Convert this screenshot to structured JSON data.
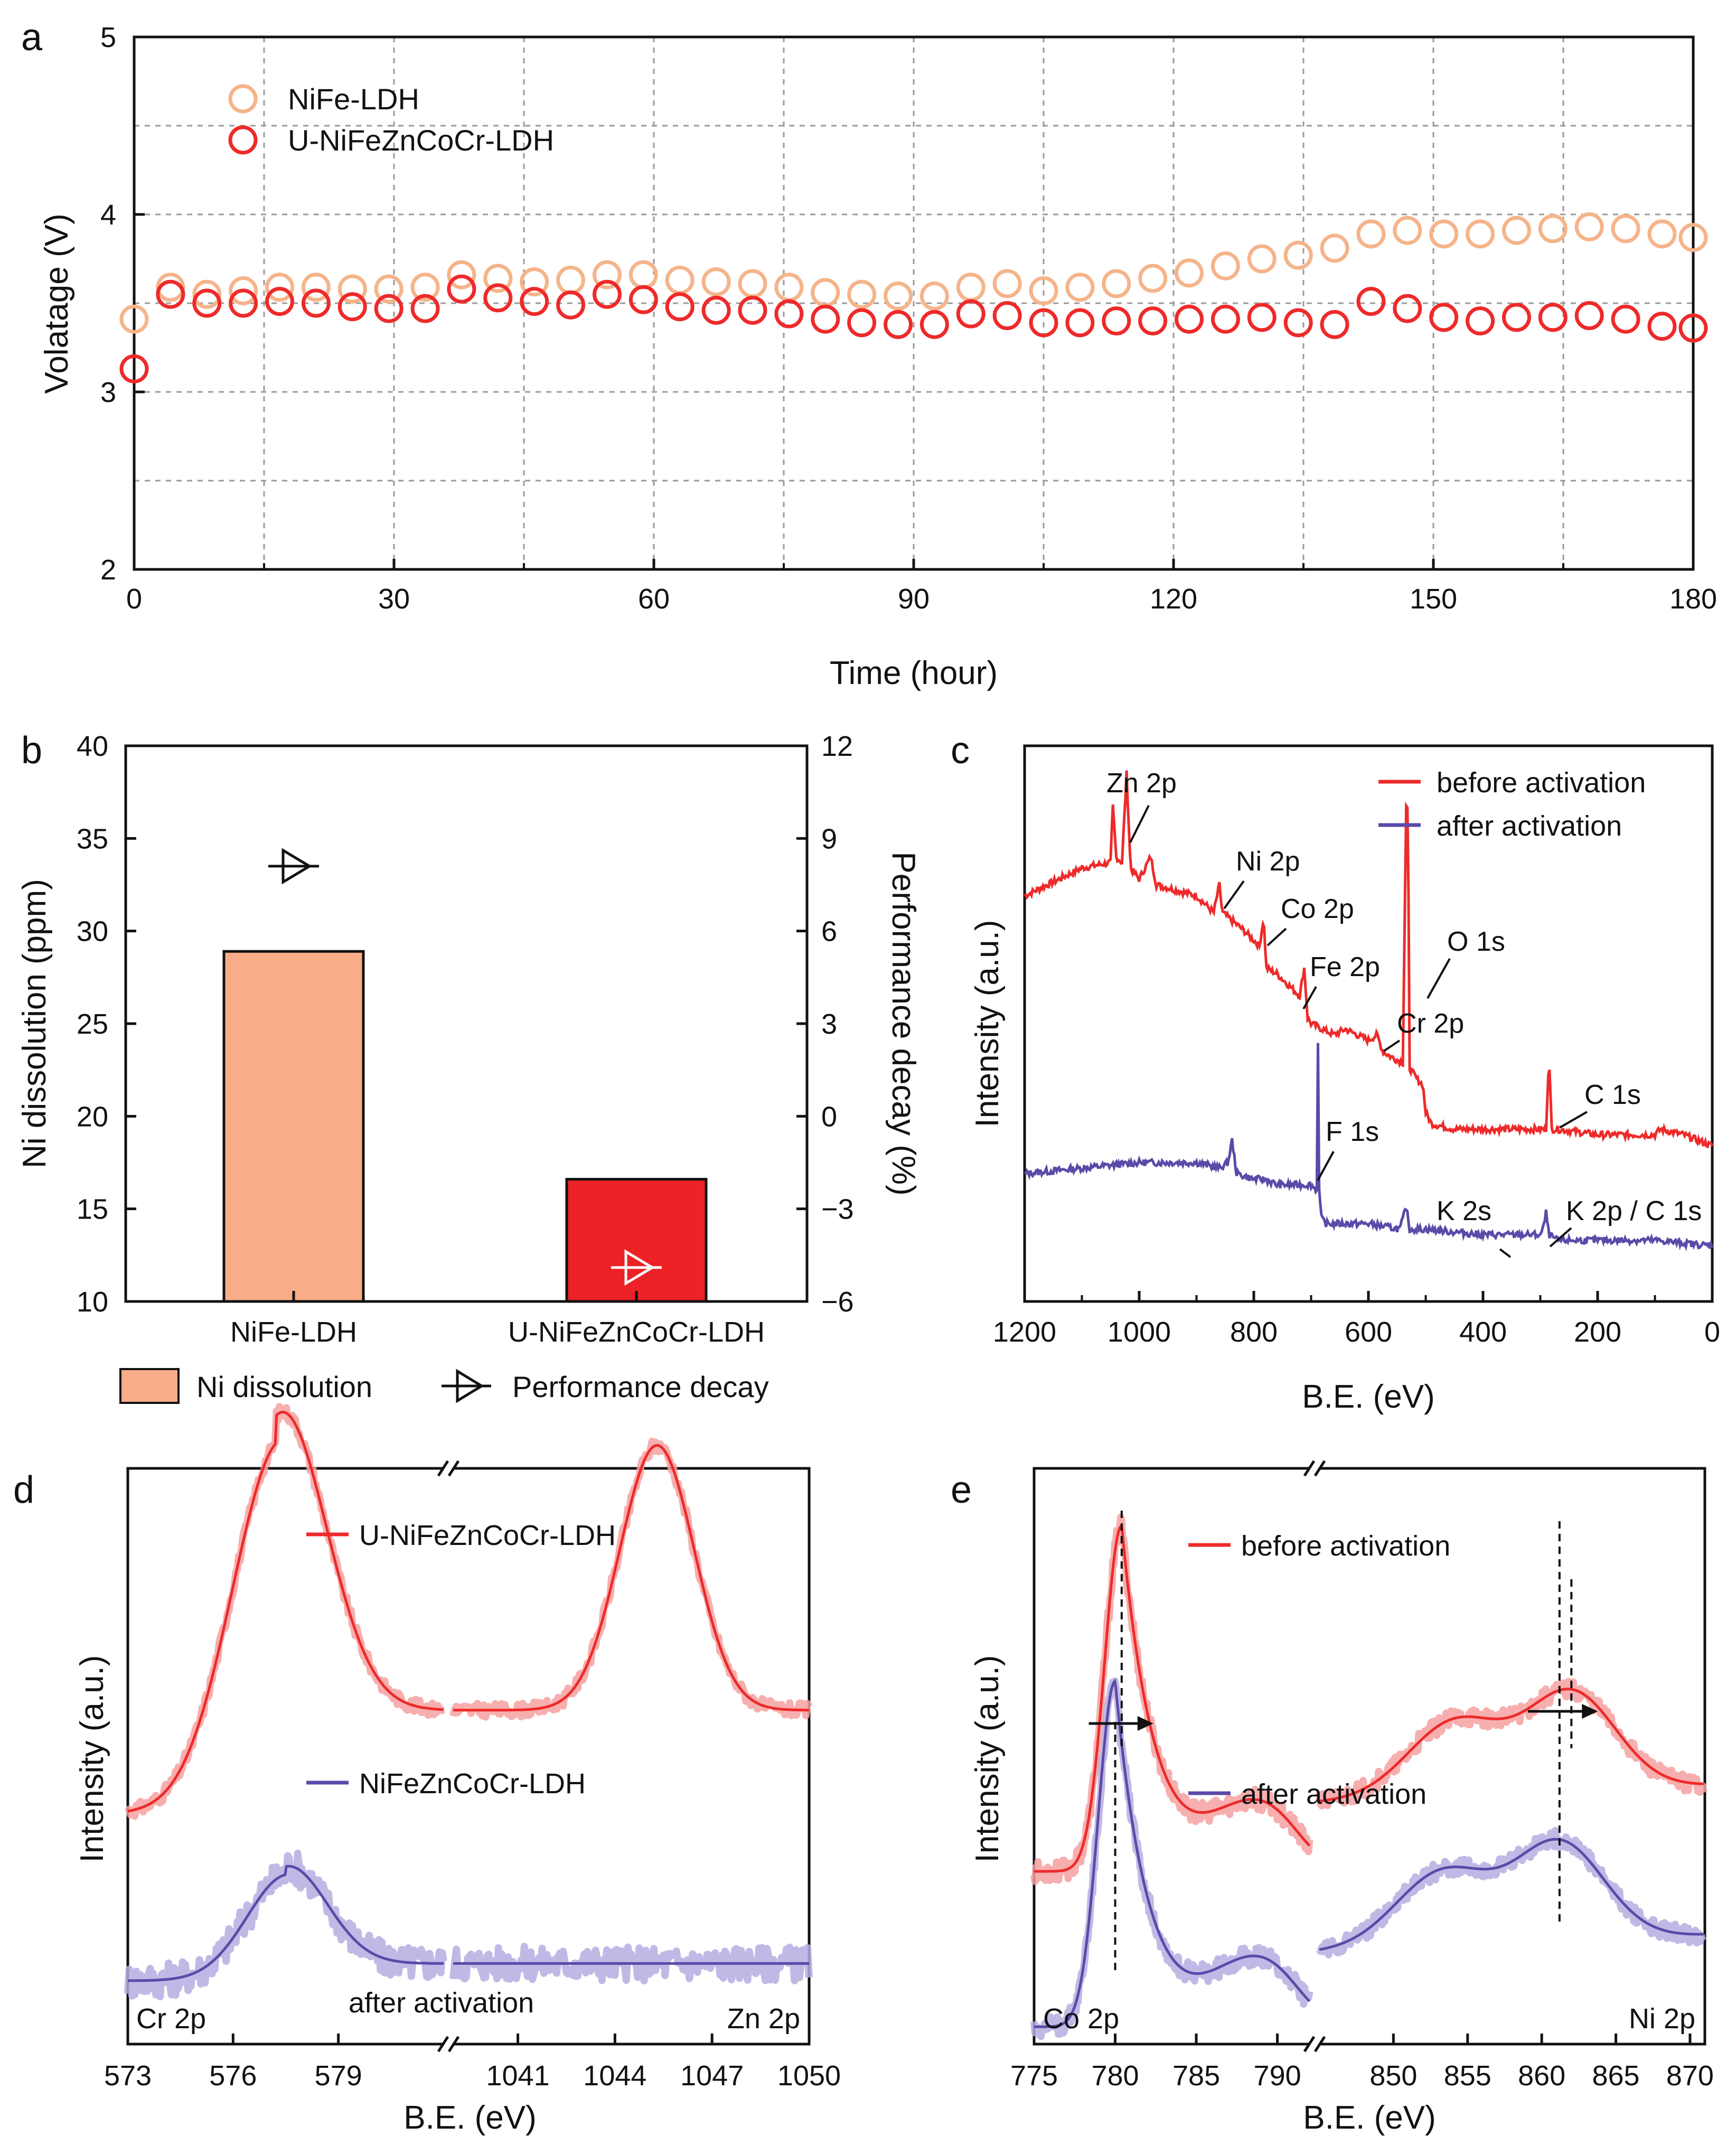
{
  "colors": {
    "nife": "#f5b48a",
    "u_ldh": "#ee2a2a",
    "after": "#5b4aa8",
    "bar_nife": "#f8ad88",
    "bar_u": "#ec2226",
    "axis": "#111111",
    "grid": "#9a9a9a"
  },
  "chart_data": [
    {
      "panel": "a",
      "type": "scatter",
      "xlabel": "Time (hour)",
      "ylabel": "Volatage (V)",
      "xlim": [
        0,
        180
      ],
      "ylim": [
        2,
        5
      ],
      "xticks": [
        "0",
        "30",
        "60",
        "90",
        "120",
        "150",
        "180"
      ],
      "yticks": [
        "2",
        "3",
        "4",
        "5"
      ],
      "grid": true,
      "legend_position": "top-left",
      "series": [
        {
          "name": "NiFe-LDH",
          "x": [
            0,
            4.2,
            8.4,
            12.6,
            16.8,
            21,
            25.2,
            29.4,
            33.6,
            37.8,
            42,
            46.2,
            50.4,
            54.6,
            58.8,
            63,
            67.2,
            71.4,
            75.6,
            79.8,
            84,
            88.2,
            92.4,
            96.6,
            100.8,
            105,
            109.2,
            113.4,
            117.6,
            121.8,
            126,
            130.2,
            134.4,
            138.6,
            142.8,
            147,
            151.2,
            155.4,
            159.6,
            163.8,
            168,
            172.2,
            176.4,
            180
          ],
          "y": [
            3.41,
            3.59,
            3.55,
            3.57,
            3.59,
            3.59,
            3.58,
            3.58,
            3.59,
            3.66,
            3.64,
            3.62,
            3.63,
            3.66,
            3.66,
            3.63,
            3.62,
            3.61,
            3.59,
            3.56,
            3.55,
            3.54,
            3.54,
            3.59,
            3.61,
            3.57,
            3.59,
            3.61,
            3.64,
            3.67,
            3.71,
            3.75,
            3.77,
            3.81,
            3.89,
            3.91,
            3.89,
            3.89,
            3.91,
            3.92,
            3.93,
            3.92,
            3.89,
            3.87
          ]
        },
        {
          "name": "U-NiFeZnCoCr-LDH",
          "x": [
            0,
            4.2,
            8.4,
            12.6,
            16.8,
            21,
            25.2,
            29.4,
            33.6,
            37.8,
            42,
            46.2,
            50.4,
            54.6,
            58.8,
            63,
            67.2,
            71.4,
            75.6,
            79.8,
            84,
            88.2,
            92.4,
            96.6,
            100.8,
            105,
            109.2,
            113.4,
            117.6,
            121.8,
            126,
            130.2,
            134.4,
            138.6,
            142.8,
            147,
            151.2,
            155.4,
            159.6,
            163.8,
            168,
            172.2,
            176.4,
            180
          ],
          "y": [
            3.13,
            3.55,
            3.5,
            3.5,
            3.51,
            3.5,
            3.48,
            3.47,
            3.47,
            3.58,
            3.53,
            3.51,
            3.49,
            3.55,
            3.52,
            3.48,
            3.46,
            3.46,
            3.44,
            3.41,
            3.39,
            3.38,
            3.38,
            3.44,
            3.43,
            3.39,
            3.39,
            3.4,
            3.4,
            3.41,
            3.41,
            3.42,
            3.39,
            3.38,
            3.51,
            3.47,
            3.42,
            3.4,
            3.42,
            3.42,
            3.43,
            3.41,
            3.37,
            3.36
          ]
        }
      ]
    },
    {
      "panel": "b",
      "type": "bar",
      "categories": [
        "NiFe-LDH",
        "U-NiFeZnCoCr-LDH"
      ],
      "ylabel": "Ni dissolution (ppm)",
      "y2label": "Performance decay (%)",
      "ylim": [
        10,
        40
      ],
      "y2lim": [
        -6,
        12
      ],
      "yticks": [
        "10",
        "15",
        "20",
        "25",
        "30",
        "35",
        "40"
      ],
      "y2ticks": [
        "-6",
        "-3",
        "0",
        "3",
        "6",
        "9",
        "12"
      ],
      "series": [
        {
          "name": "Ni dissolution",
          "values": [
            28.9,
            16.6
          ]
        },
        {
          "name": "Performance decay",
          "axis": "right",
          "values": [
            8.1,
            -4.9
          ]
        }
      ],
      "legend_position": "bottom"
    },
    {
      "panel": "c",
      "type": "line",
      "xlabel": "B.E. (eV)",
      "ylabel": "Intensity (a.u.)",
      "xlim": [
        1200,
        0
      ],
      "xticks": [
        "1200",
        "1000",
        "800",
        "600",
        "400",
        "200",
        "0"
      ],
      "legend_position": "top-right",
      "series": [
        {
          "name": "before activation",
          "x": [
            1200,
            1100,
            1050,
            1046,
            1040,
            1030,
            1022,
            1015,
            1000,
            980,
            970,
            900,
            870,
            860,
            855,
            820,
            790,
            783,
            778,
            760,
            720,
            712,
            706,
            700,
            660,
            640,
            600,
            585,
            575,
            560,
            540,
            534,
            531,
            528,
            515,
            505,
            500,
            490,
            450,
            400,
            300,
            290,
            285,
            280,
            270,
            200,
            100,
            90,
            50,
            0
          ],
          "y": [
            0.73,
            0.78,
            0.79,
            0.89,
            0.8,
            0.79,
            0.95,
            0.78,
            0.76,
            0.8,
            0.75,
            0.73,
            0.7,
            0.75,
            0.7,
            0.67,
            0.64,
            0.69,
            0.6,
            0.59,
            0.55,
            0.6,
            0.51,
            0.5,
            0.48,
            0.49,
            0.47,
            0.48,
            0.45,
            0.44,
            0.43,
            0.89,
            0.88,
            0.42,
            0.4,
            0.39,
            0.34,
            0.32,
            0.31,
            0.31,
            0.31,
            0.31,
            0.44,
            0.31,
            0.31,
            0.3,
            0.3,
            0.31,
            0.3,
            0.28
          ]
        },
        {
          "name": "after activation",
          "x": [
            1200,
            1100,
            1000,
            900,
            860,
            845,
            838,
            830,
            800,
            780,
            760,
            720,
            700,
            690,
            688,
            686,
            682,
            675,
            600,
            545,
            534,
            528,
            500,
            400,
            300,
            295,
            290,
            285,
            270,
            200,
            100,
            0
          ],
          "y": [
            0.23,
            0.24,
            0.25,
            0.25,
            0.24,
            0.25,
            0.29,
            0.23,
            0.22,
            0.22,
            0.21,
            0.21,
            0.21,
            0.2,
            0.47,
            0.2,
            0.15,
            0.14,
            0.14,
            0.13,
            0.17,
            0.13,
            0.13,
            0.12,
            0.12,
            0.13,
            0.16,
            0.12,
            0.11,
            0.11,
            0.11,
            0.1
          ]
        }
      ],
      "annotations": [
        "Zn 2p",
        "Ni 2p",
        "Co 2p",
        "Fe 2p",
        "O 1s",
        "Cr 2p",
        "C 1s",
        "F 1s",
        "K 2s",
        "K 2p / C 1s"
      ]
    },
    {
      "panel": "d",
      "type": "line",
      "xlabel": "B.E. (eV)",
      "ylabel": "Intensity (a.u.)",
      "xlim_left": [
        573,
        582
      ],
      "xlim_right": [
        1039,
        1050
      ],
      "xticks_left": [
        "573",
        "576",
        "579"
      ],
      "xticks_right": [
        "1041",
        "1044",
        "1047",
        "1050"
      ],
      "corner_labels": {
        "left": "Cr 2p",
        "middle": "after activation",
        "right": "Zn 2p"
      },
      "series": [
        {
          "name": "U-NiFeZnCoCr-LDH",
          "left_center": 577.2,
          "left_sigma": 1.35,
          "left_height": 0.6,
          "left_baseline": [
            0.4,
            0.58
          ],
          "right_center": 1045.3,
          "right_sigma": 1.15,
          "right_height": 0.46,
          "right_baseline": 0.58
        },
        {
          "name": "NiFeZnCoCr-LDH",
          "left_center": 577.5,
          "left_sigma": 1.15,
          "left_height": 0.18,
          "left_baseline": [
            0.11,
            0.14
          ],
          "right_center": 1045.3,
          "right_sigma": 1.2,
          "right_height": 0.0,
          "right_baseline": 0.14
        }
      ]
    },
    {
      "panel": "e",
      "type": "line",
      "xlabel": "B.E. (eV)",
      "ylabel": "Intensity (a.u.)",
      "xlim_left": [
        775,
        792
      ],
      "xlim_right": [
        845,
        871
      ],
      "xticks_left": [
        "775",
        "780",
        "785",
        "790"
      ],
      "xticks_right": [
        "850",
        "855",
        "860",
        "865",
        "870"
      ],
      "corner_labels": {
        "left": "Co 2p",
        "right": "Ni 2p"
      },
      "peak_markers": {
        "co_before": 780.4,
        "co_after": 780.0,
        "ni_before": 862.0,
        "ni_after": 861.2
      },
      "series": [
        {
          "name": "before activation",
          "co_peak": 780.4,
          "ni_peak": 862.0
        },
        {
          "name": "after activation",
          "co_peak": 780.0,
          "ni_peak": 861.2
        }
      ]
    }
  ],
  "panels": {
    "a": {
      "letter": "a",
      "xlabel": "Time (hour)",
      "ylabel": "Volatage (V)",
      "legend": [
        "NiFe-LDH",
        "U-NiFeZnCoCr-LDH"
      ]
    },
    "b": {
      "letter": "b",
      "ylabel": "Ni dissolution (ppm)",
      "y2label": "Performance decay (%)",
      "legend": [
        "Ni dissolution",
        "Performance decay"
      ]
    },
    "c": {
      "letter": "c",
      "xlabel": "B.E. (eV)",
      "ylabel": "Intensity (a.u.)",
      "legend": [
        "before activation",
        "after activation"
      ]
    },
    "d": {
      "letter": "d",
      "xlabel": "B.E. (eV)",
      "ylabel": "Intensity (a.u.)",
      "legend": [
        "U-NiFeZnCoCr-LDH",
        "NiFeZnCoCr-LDH"
      ]
    },
    "e": {
      "letter": "e",
      "xlabel": "B.E. (eV)",
      "ylabel": "Intensity (a.u.)",
      "legend": [
        "before activation",
        "after activation"
      ]
    }
  }
}
